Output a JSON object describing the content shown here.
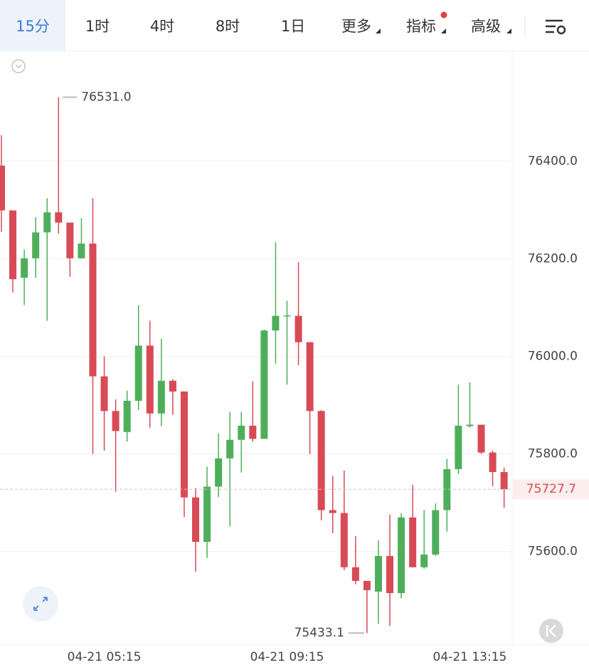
{
  "toolbar": {
    "tabs": [
      "15分",
      "1时",
      "4时",
      "8时",
      "1日",
      "更多",
      "指标",
      "高级"
    ]
  },
  "chart_data": {
    "type": "candlestick",
    "categories": [
      null,
      null,
      null,
      null,
      null,
      null,
      null,
      null,
      null,
      "04-21 05:15",
      null,
      null,
      null,
      null,
      null,
      null,
      null,
      null,
      null,
      null,
      null,
      null,
      null,
      null,
      null,
      "04-21 09:15",
      null,
      null,
      null,
      null,
      null,
      null,
      null,
      null,
      null,
      null,
      null,
      null,
      null,
      null,
      null,
      "04-21 13:15",
      null,
      null,
      null
    ],
    "open": [
      76391,
      76299,
      76161,
      76201,
      76254,
      76295,
      76274,
      76201,
      76231,
      75959,
      75888,
      75845,
      75909,
      76022,
      75883,
      75950,
      75928,
      75711,
      75620,
      75733,
      75791,
      75829,
      75858,
      75831,
      76053,
      76082,
      76083,
      76029,
      75888,
      75685,
      75679,
      75568,
      75540,
      75518,
      75591,
      75515,
      75670,
      75568,
      75594,
      75685,
      75769,
      75857,
      75860,
      75803,
      75763
    ],
    "high": [
      76453,
      76299,
      76219,
      76285,
      76324,
      76531,
      76274,
      76283,
      76324,
      76000,
      75912,
      75930,
      76105,
      76073,
      76036,
      75953,
      75928,
      75730,
      75774,
      75842,
      75886,
      75886,
      75949,
      76055,
      76234,
      76114,
      76193,
      76029,
      75890,
      75755,
      75766,
      75632,
      75540,
      75623,
      75676,
      75679,
      75737,
      75685,
      75699,
      75790,
      75942,
      75947,
      75860,
      75807,
      75772
    ],
    "low": [
      76255,
      76131,
      76105,
      76161,
      76073,
      76251,
      76163,
      76201,
      75800,
      75807,
      75723,
      75825,
      75890,
      75854,
      75857,
      75880,
      75671,
      75559,
      75587,
      75712,
      75652,
      75762,
      75825,
      75831,
      75985,
      75942,
      75982,
      75800,
      75664,
      75638,
      75562,
      75533,
      75433.1,
      75452,
      75448,
      75504,
      75568,
      75565,
      75591,
      75641,
      75759,
      75854,
      75800,
      75734,
      75690
    ],
    "close": [
      76299,
      76158,
      76201,
      76254,
      76295,
      76274,
      76201,
      76231,
      75959,
      75888,
      75847,
      75909,
      76022,
      75883,
      75950,
      75928,
      75711,
      75620,
      75733,
      75791,
      75829,
      75858,
      75831,
      76053,
      76083,
      76084,
      76029,
      75888,
      75685,
      75679,
      75568,
      75540,
      75521,
      75591,
      75515,
      75670,
      75568,
      75594,
      75685,
      75769,
      75858,
      75860,
      75803,
      75763,
      75727.7
    ],
    "up_color": "#4fae5b",
    "down_color": "#d84a55",
    "ylim": [
      75410,
      76625
    ],
    "yticks": [
      {
        "value": 75600,
        "label": "75600.0"
      },
      {
        "value": 75800,
        "label": "75800.0"
      },
      {
        "value": 76000,
        "label": "76000.0"
      },
      {
        "value": 76200,
        "label": "76200.0"
      },
      {
        "value": 76400,
        "label": "76400.0"
      }
    ],
    "grid": true,
    "high_marker": {
      "value": 76531,
      "label": "76531.0"
    },
    "low_marker": 75433.1,
    "last_price": 75727.7
  }
}
